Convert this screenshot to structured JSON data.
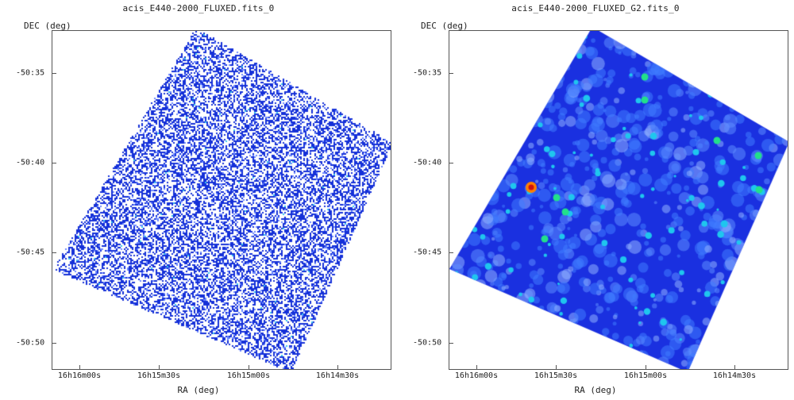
{
  "panels": [
    {
      "title": "acis_E440-2000_FLUXED.fits_0",
      "ylabel": "DEC (deg)",
      "xlabel": "RA (deg)",
      "yticks": [
        "-50:35",
        "-50:40",
        "-50:45",
        "-50:50"
      ],
      "xticks": [
        "16h16m00s",
        "16h15m30s",
        "16h15m00s",
        "16h14m30s"
      ],
      "style": "sparse-pixels",
      "colors": {
        "pixel": "#1530d8",
        "light": "#6a86ff",
        "cyan": "#35c8ee"
      }
    },
    {
      "title": "acis_E440-2000_FLUXED_G2.fits_0",
      "ylabel": "DEC (deg)",
      "xlabel": "RA (deg)",
      "yticks": [
        "-50:35",
        "-50:40",
        "-50:45",
        "-50:50"
      ],
      "xticks": [
        "16h16m00s",
        "16h15m30s",
        "16h15m00s",
        "16h14m30s"
      ],
      "style": "smoothed",
      "colors": {
        "base": "#1a30e0",
        "mid": "#3f7cff",
        "cyan": "#1fc6ee",
        "green": "#22e08a",
        "hot": "#ff8000",
        "core": "#d01010"
      }
    }
  ]
}
